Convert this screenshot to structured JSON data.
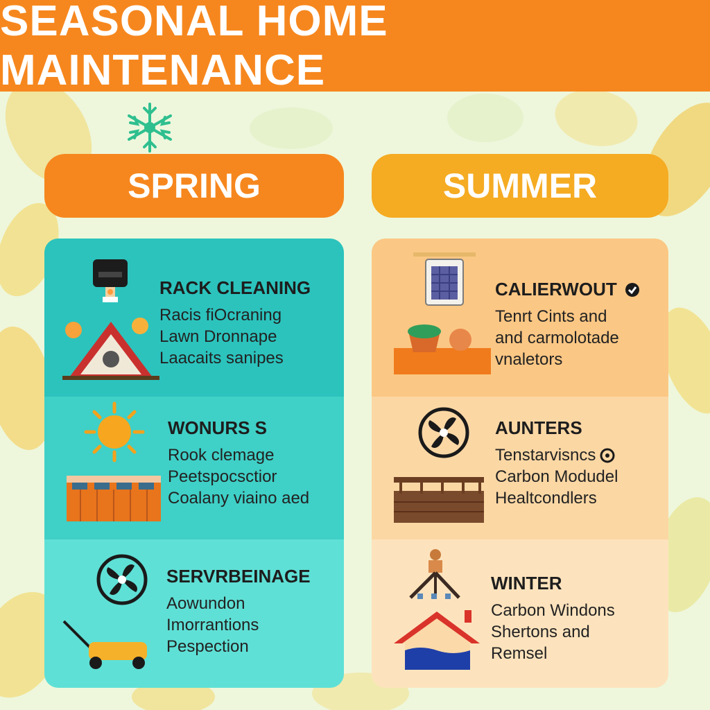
{
  "header": {
    "title": "SEASONAL HOME MAINTENANCE"
  },
  "colors": {
    "header_orange": "#f6871e",
    "summer_pill": "#f5ab22",
    "spring_row_1": "#2cc3bd",
    "spring_row_2": "#3fd0c7",
    "spring_row_3": "#5fe0d6",
    "summer_row_1": "#fbc784",
    "summer_row_2": "#fbd7a4",
    "summer_row_3": "#fde3bd",
    "background": "#eef7dc"
  },
  "columns": [
    {
      "label": "SPRING",
      "rows": [
        {
          "heading": "RACK CLEANING",
          "lines": [
            "Racis fiOcraning",
            "Lawn Dronnape",
            "Laacaits sanipes"
          ],
          "icons": [
            "light-fixture-icon",
            "roof-house-icon"
          ]
        },
        {
          "heading": "WONURS S",
          "lines": [
            "Rook clemage",
            "Peetspocsctior",
            "Coalany viaino aed"
          ],
          "icons": [
            "sun-icon",
            "fence-icon"
          ]
        },
        {
          "heading": "SERVRBEINAGE",
          "lines": [
            "Aowundon",
            "Imorrantions",
            "Pespection"
          ],
          "icons": [
            "fan-icon",
            "lawn-mower-icon"
          ]
        }
      ]
    },
    {
      "label": "SUMMER",
      "rows": [
        {
          "heading": "CALIERWOUT",
          "lines": [
            "Tenrt Cints and",
            "and carmolotade",
            "vnaletors"
          ],
          "icons": [
            "air-filter-icon",
            "planter-icon",
            "check-circle-icon"
          ]
        },
        {
          "heading": "AUNTERS",
          "lines": [
            "Tenstarvisncs",
            "Carbon Modudel",
            "Healtcondlers"
          ],
          "icons": [
            "fan-icon",
            "deck-icon",
            "badge-icon"
          ]
        },
        {
          "heading": "WINTER",
          "lines": [
            "Carbon Windons",
            "Shertons and",
            "Remsel"
          ],
          "icons": [
            "tripod-icon",
            "flooded-house-icon"
          ]
        }
      ]
    }
  ],
  "decor": [
    "snowflake-icon",
    "leaf-icon"
  ]
}
